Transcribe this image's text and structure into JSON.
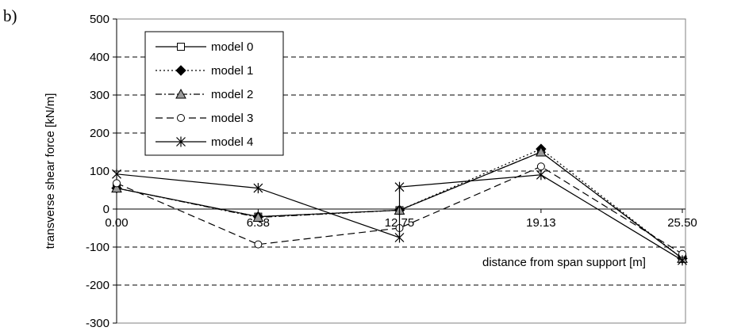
{
  "panel_label": "b)",
  "chart_data": {
    "type": "line",
    "title": "",
    "xlabel": "distance from span support [m]",
    "ylabel": "transverse shear force [kN/m]",
    "ylim": [
      -300,
      500
    ],
    "yticks": [
      "500",
      "400",
      "300",
      "200",
      "100",
      "0",
      "-100",
      "-200",
      "-300"
    ],
    "x": [
      0.0,
      6.38,
      12.75,
      19.13,
      25.5
    ],
    "xtick_labels": [
      "0.00",
      "6.38",
      "12.75",
      "19.13",
      "25.50"
    ],
    "grid": "horizontal dashed",
    "legend_placement": "top-left",
    "series": [
      {
        "name": "model 0",
        "marker": "open-square",
        "dash": "solid",
        "points": [
          [
            0.0,
            55
          ],
          [
            6.38,
            -20
          ],
          [
            12.75,
            -3
          ],
          [
            19.13,
            150
          ],
          [
            25.5,
            -130
          ]
        ]
      },
      {
        "name": "model 1",
        "marker": "filled-diamond",
        "dash": "dotted",
        "points": [
          [
            0.0,
            55
          ],
          [
            6.38,
            -20
          ],
          [
            12.75,
            -3
          ],
          [
            19.13,
            158
          ],
          [
            25.5,
            -130
          ]
        ]
      },
      {
        "name": "model 2",
        "marker": "gray-triangle",
        "dash": "dashdot",
        "points": [
          [
            0.0,
            55
          ],
          [
            6.38,
            -22
          ],
          [
            12.75,
            -3
          ],
          [
            19.13,
            150
          ],
          [
            25.5,
            -130
          ]
        ]
      },
      {
        "name": "model 3",
        "marker": "open-circle",
        "dash": "dashed",
        "points": [
          [
            0.0,
            68
          ],
          [
            6.38,
            -93
          ],
          [
            12.75,
            -50
          ],
          [
            19.13,
            112
          ],
          [
            25.5,
            -118
          ]
        ]
      },
      {
        "name": "model 4",
        "marker": "asterisk",
        "dash": "solid",
        "points": [
          [
            0.0,
            92
          ],
          [
            6.38,
            55
          ],
          [
            12.75,
            -75
          ],
          [
            12.75,
            58
          ],
          [
            19.13,
            90
          ],
          [
            25.5,
            -135
          ]
        ]
      }
    ]
  }
}
